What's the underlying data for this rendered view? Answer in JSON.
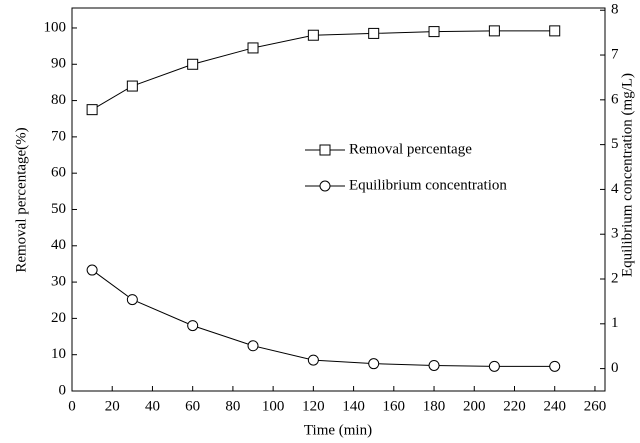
{
  "chart_data": {
    "type": "line",
    "x_label": "Time (min)",
    "y_label": "Removal percentage(%)",
    "y2_label": "Equilibrium concentration (mg/L)",
    "x": [
      10,
      30,
      60,
      90,
      120,
      150,
      180,
      210,
      240
    ],
    "series": [
      {
        "name": "Removal percentage",
        "color": "#000000",
        "marker": "square",
        "values": [
          77.5,
          84,
          90,
          94.5,
          98,
          98.5,
          99,
          99.2,
          99.2
        ]
      },
      {
        "name": "Equilibrium concentration",
        "color": "#000000",
        "marker": "circle",
        "axis": "y2",
        "values": [
          2.2,
          1.54,
          0.96,
          0.51,
          0.19,
          0.11,
          0.07,
          0.05,
          0.05
        ]
      }
    ],
    "xlim": [
      0,
      265
    ],
    "xticks": [
      0,
      20,
      40,
      60,
      80,
      100,
      120,
      140,
      160,
      180,
      200,
      220,
      240,
      260
    ],
    "ylim": [
      0,
      105.5
    ],
    "yticks": [
      0,
      10,
      20,
      30,
      40,
      50,
      60,
      70,
      80,
      90,
      100
    ],
    "y2lim": [
      -0.5,
      8.05
    ],
    "y2ticks": [
      0,
      1,
      2,
      3,
      4,
      5,
      6,
      7,
      8
    ],
    "grid": false,
    "legend": "center-right"
  }
}
